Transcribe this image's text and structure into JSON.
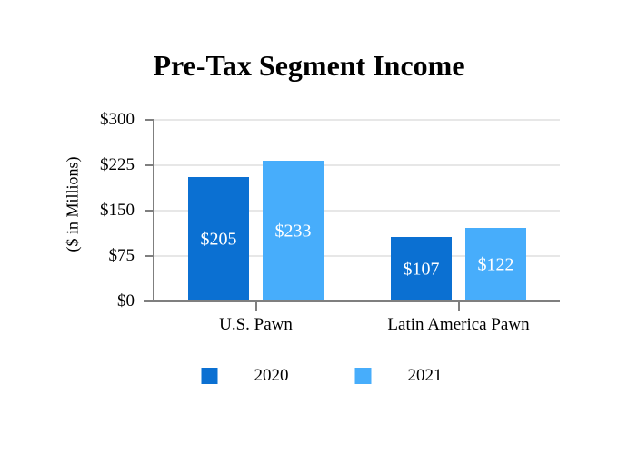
{
  "chart_data": {
    "type": "bar",
    "title": "Pre-Tax Segment Income",
    "ylabel": "($ in Millions)",
    "xlabel": "",
    "categories": [
      "U.S. Pawn",
      "Latin America Pawn"
    ],
    "series": [
      {
        "name": "2020",
        "color": "#0B70D2",
        "values": [
          205,
          107
        ],
        "value_labels": [
          "$205",
          "$107"
        ]
      },
      {
        "name": "2021",
        "color": "#47ADFB",
        "values": [
          233,
          122
        ],
        "value_labels": [
          "$233",
          "$122"
        ]
      }
    ],
    "ylim": [
      0,
      300
    ],
    "yticks": [
      {
        "value": 0,
        "label": "$0"
      },
      {
        "value": 75,
        "label": "$75"
      },
      {
        "value": 150,
        "label": "$150"
      },
      {
        "value": 225,
        "label": "$225"
      },
      {
        "value": 300,
        "label": "$300"
      }
    ],
    "grid": true,
    "legend_position": "bottom",
    "value_label_color": "#FFFFFF",
    "gridline_color": "#E7E7E7",
    "axis_color": "#7F7F7F",
    "background_color": "#FFFFFF"
  }
}
